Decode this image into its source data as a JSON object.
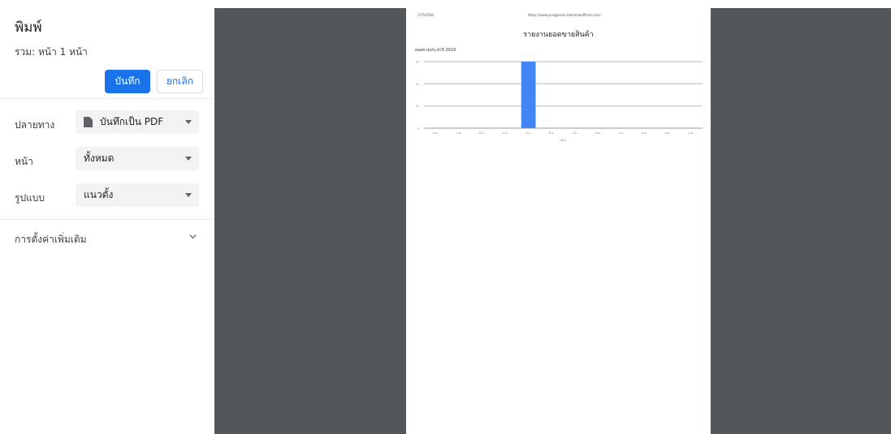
{
  "dialog": {
    "title": "พิมพ์",
    "total": "รวม: หน้า 1 หน้า",
    "save_label": "บันทึก",
    "cancel_label": "ยกเลิก",
    "destination": {
      "label": "ปลายทาง",
      "value": "บันทึกเป็น PDF",
      "icon": "document-icon"
    },
    "pages": {
      "label": "หน้า",
      "value": "ทั้งหมด"
    },
    "layout": {
      "label": "รูปแบบ",
      "value": "แนวตั้ง"
    },
    "more_settings": "การตั้งค่าเพิ่มเติม"
  },
  "colors": {
    "accent": "#1a73e8",
    "preview_bg": "#54575a",
    "bar": "#4285f4"
  },
  "page": {
    "date": "17/5/2562",
    "url": "https://www.yongprout.maechaeofficial.com/",
    "title": "รายงานยอดขายสินค้า"
  },
  "chart_data": {
    "type": "bar",
    "title": "ยอดขายประจำปี 2019",
    "categories": [
      "ม.ค.",
      "ก.พ.",
      "มี.ค.",
      "เม.ย.",
      "พ.ค.",
      "มิ.ย.",
      "ก.ค.",
      "ส.ค.",
      "ก.ย.",
      "ต.ค.",
      "พ.ย.",
      "ธ.ค."
    ],
    "values": [
      0,
      0,
      0,
      0,
      30,
      0,
      0,
      0,
      0,
      0,
      0,
      0
    ],
    "ylim": [
      0,
      30
    ],
    "yticks": [
      "0",
      "10",
      "20",
      "30"
    ],
    "xlabel": "เดือน",
    "ylabel": "",
    "grid": true
  }
}
